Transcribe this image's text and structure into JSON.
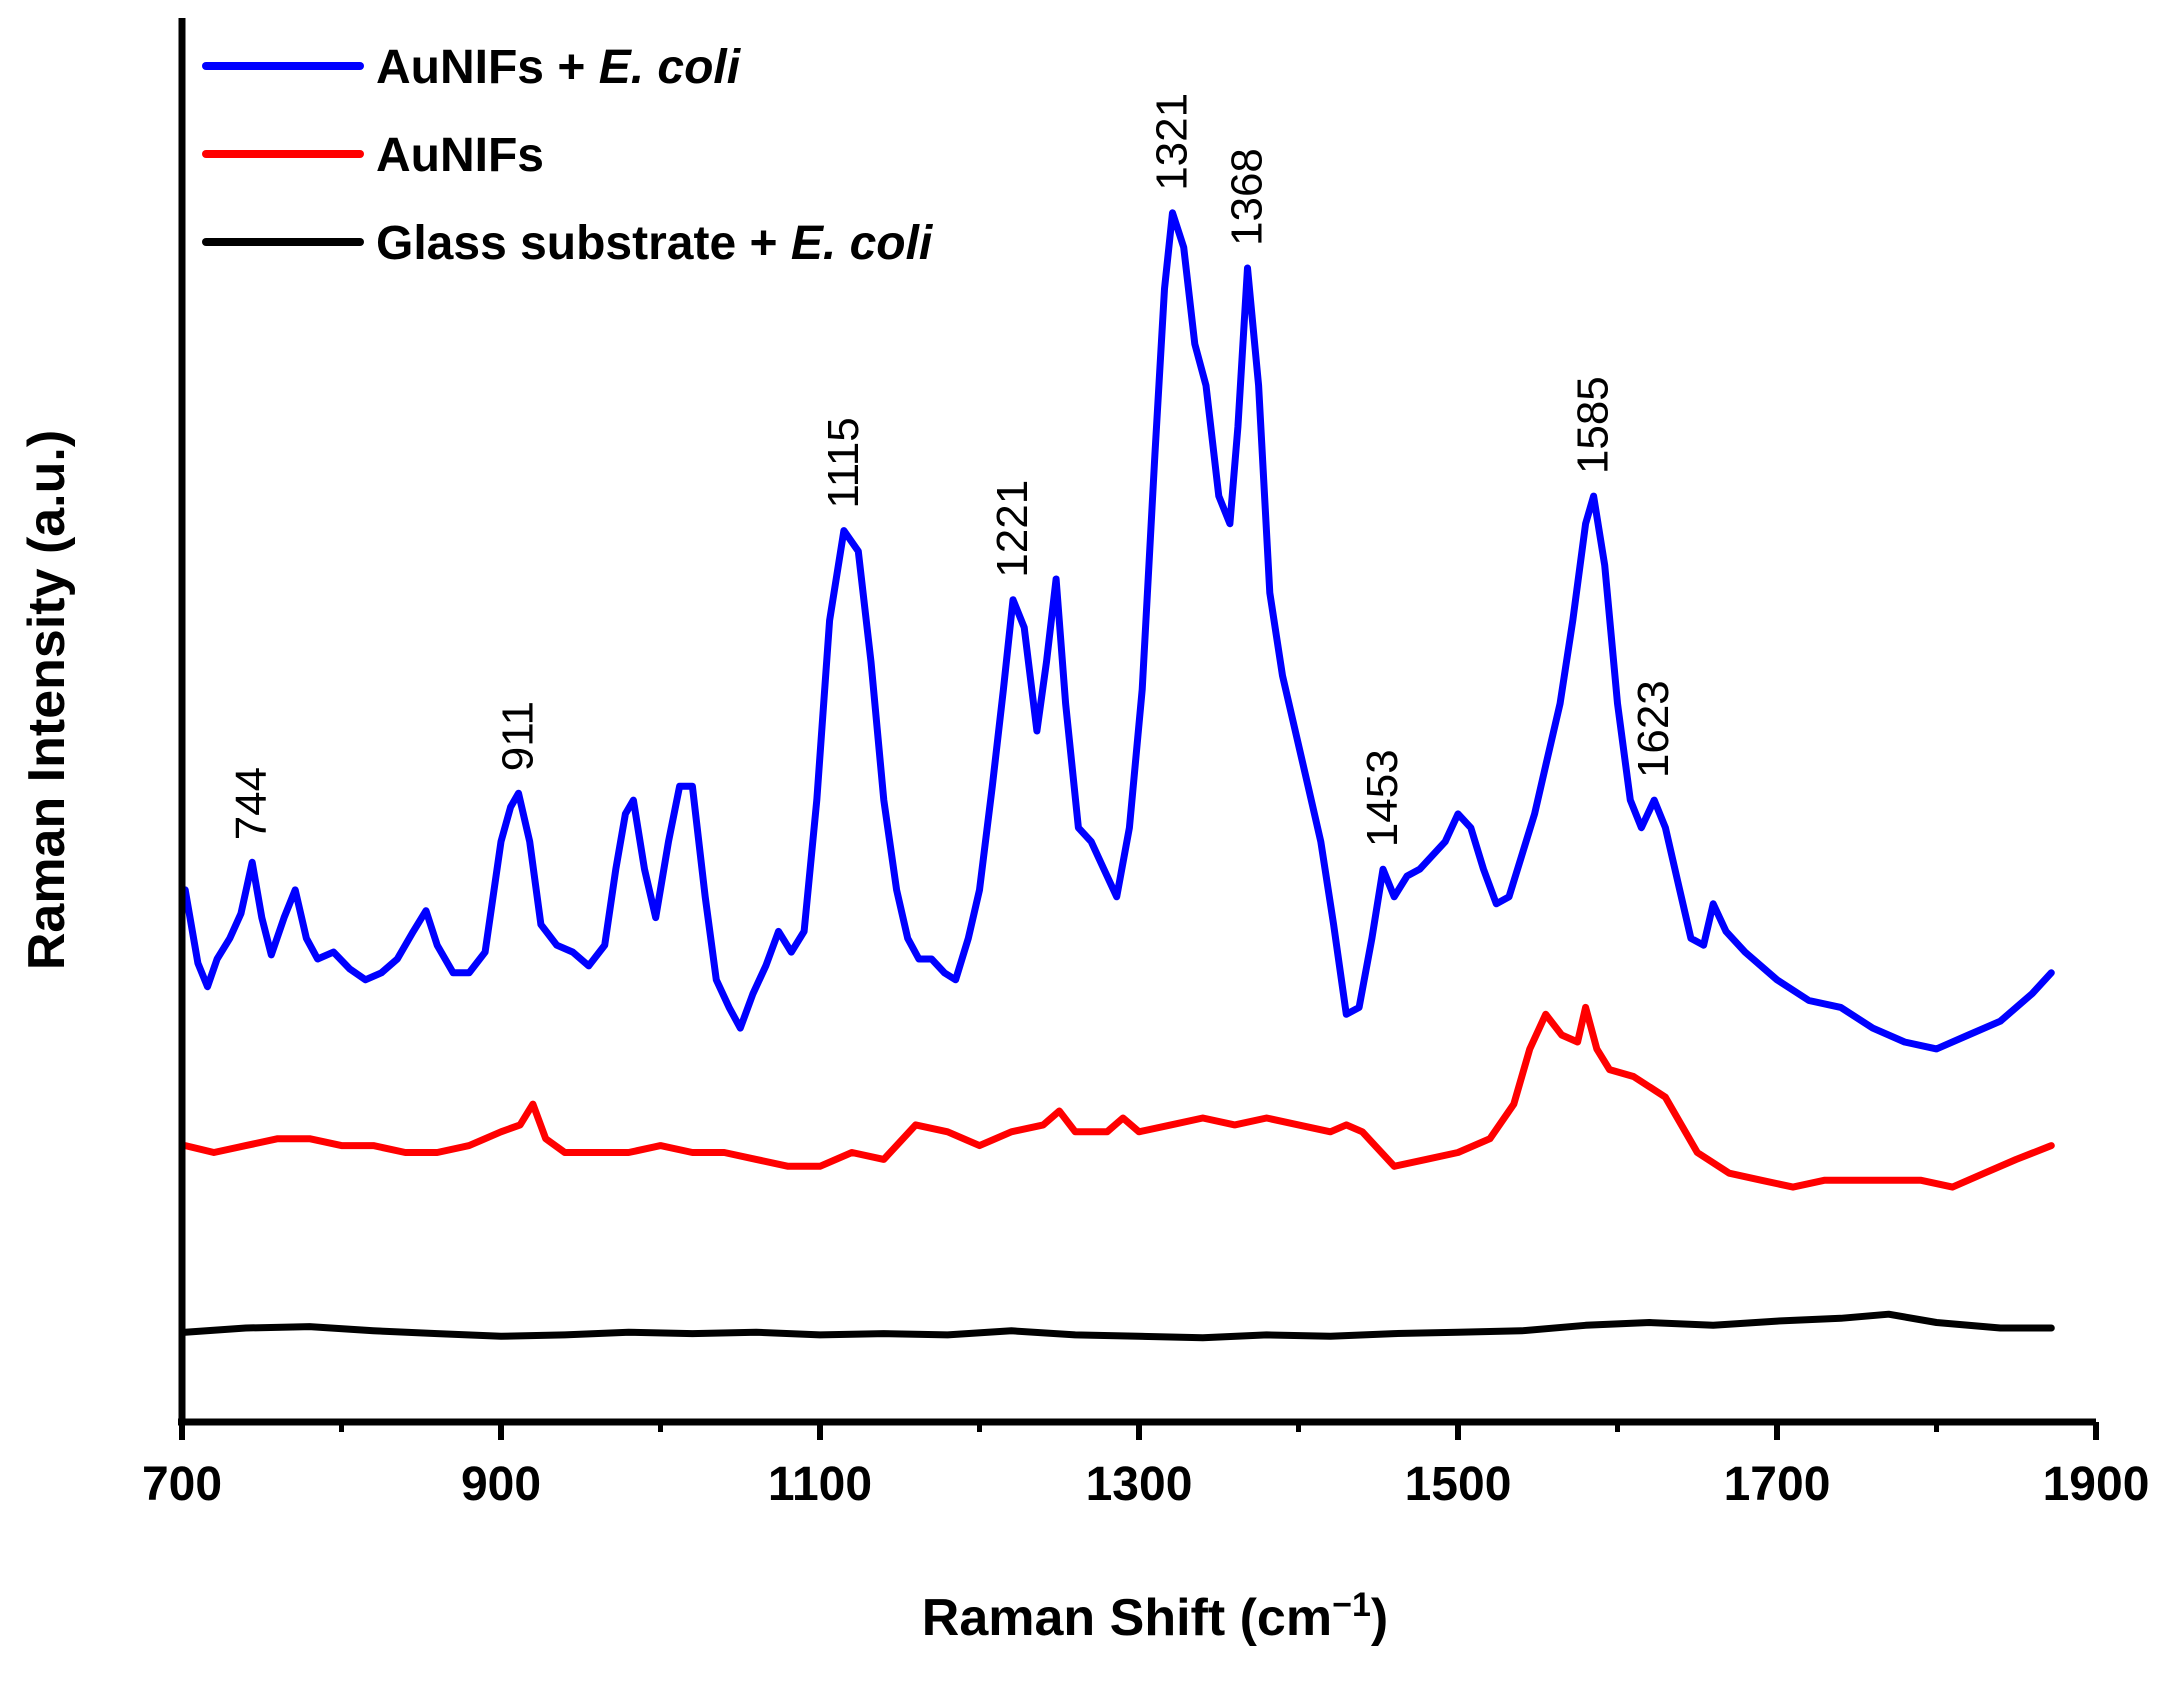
{
  "chart_data": {
    "type": "line",
    "xlabel": "Raman Shift (cm",
    "xlabel_superscript": "−1",
    "xlabel_suffix": ")",
    "ylabel": "Raman Intensity (a.u.)",
    "xlim": [
      700,
      1900
    ],
    "ylim": [
      0,
      100
    ],
    "x_ticks": [
      700,
      900,
      1100,
      1300,
      1500,
      1700,
      1900
    ],
    "x_tick_labels": [
      "700",
      "900",
      "1100",
      "1300",
      "1500",
      "1700",
      "1900"
    ],
    "y_ticks_shown": false,
    "legend_position": "top-left",
    "legend": [
      {
        "label": "AuNIFs + ",
        "label_italic": "E. coli",
        "color": "#0000ff"
      },
      {
        "label": "AuNIFs",
        "label_italic": "",
        "color": "#ff0000"
      },
      {
        "label": "Glass substrate + ",
        "label_italic": "E. coli",
        "color": "#000000"
      }
    ],
    "series": [
      {
        "label_ref": 0,
        "color": "#0000ff",
        "x": [
          702,
          710,
          716,
          722,
          730,
          737,
          744,
          750,
          756,
          764,
          771,
          778,
          785,
          795,
          805,
          815,
          825,
          835,
          845,
          853,
          860,
          870,
          880,
          890,
          900,
          906,
          911,
          918,
          925,
          935,
          945,
          955,
          965,
          972,
          978,
          983,
          990,
          997,
          1005,
          1012,
          1020,
          1028,
          1035,
          1043,
          1050,
          1058,
          1066,
          1074,
          1082,
          1090,
          1098,
          1106,
          1115,
          1124,
          1132,
          1140,
          1148,
          1155,
          1162,
          1170,
          1178,
          1185,
          1193,
          1200,
          1208,
          1215,
          1221,
          1228,
          1236,
          1242,
          1248,
          1254,
          1262,
          1270,
          1278,
          1286,
          1294,
          1302,
          1310,
          1316,
          1321,
          1328,
          1335,
          1342,
          1350,
          1357,
          1362,
          1368,
          1375,
          1382,
          1390,
          1398,
          1406,
          1414,
          1422,
          1430,
          1438,
          1446,
          1453,
          1460,
          1468,
          1476,
          1484,
          1492,
          1500,
          1508,
          1516,
          1524,
          1532,
          1540,
          1548,
          1556,
          1564,
          1572,
          1580,
          1585,
          1592,
          1600,
          1608,
          1615,
          1623,
          1630,
          1638,
          1646,
          1654,
          1660,
          1668,
          1680,
          1700,
          1720,
          1740,
          1760,
          1780,
          1800,
          1820,
          1840,
          1860,
          1872
        ],
        "y": [
          38.5,
          33.2,
          31.5,
          33.5,
          35.0,
          36.8,
          40.5,
          36.5,
          33.8,
          36.5,
          38.5,
          35.0,
          33.5,
          34.0,
          32.8,
          32.0,
          32.5,
          33.5,
          35.5,
          37.0,
          34.5,
          32.5,
          32.5,
          34.0,
          42.0,
          44.5,
          45.5,
          42.0,
          36.0,
          34.5,
          34.0,
          33.0,
          34.5,
          40.0,
          44.0,
          45.0,
          40.0,
          36.5,
          42.0,
          46.0,
          46.0,
          38.0,
          32.0,
          30.0,
          28.5,
          31.0,
          33.0,
          35.5,
          34.0,
          35.5,
          45.0,
          58.0,
          64.5,
          63.0,
          55.0,
          45.0,
          38.5,
          35.0,
          33.5,
          33.5,
          32.5,
          32.0,
          35.0,
          38.5,
          46.0,
          53.0,
          59.5,
          57.5,
          50.0,
          55.0,
          61.0,
          52.0,
          43.0,
          42.0,
          40.0,
          38.0,
          43.0,
          53.0,
          70.0,
          82.0,
          87.5,
          85.0,
          78.0,
          75.0,
          67.0,
          65.0,
          72.0,
          83.5,
          75.0,
          60.0,
          54.0,
          50.0,
          46.0,
          42.0,
          36.0,
          29.5,
          30.0,
          35.0,
          40.0,
          38.0,
          39.5,
          40.0,
          41.0,
          42.0,
          44.0,
          43.0,
          40.0,
          37.5,
          38.0,
          41.0,
          44.0,
          48.0,
          52.0,
          58.0,
          65.0,
          67.0,
          62.0,
          52.0,
          45.0,
          43.0,
          45.0,
          43.0,
          39.0,
          35.0,
          34.5,
          37.5,
          35.5,
          34.0,
          32.0,
          30.5,
          30.0,
          28.5,
          27.5,
          27.0,
          28.0,
          29.0,
          31.0,
          32.5
        ],
        "peaks": [
          744,
          911,
          1115,
          1221,
          1321,
          1368,
          1453,
          1585,
          1623
        ]
      },
      {
        "label_ref": 1,
        "color": "#ff0000",
        "x": [
          702,
          720,
          740,
          760,
          780,
          800,
          820,
          840,
          860,
          880,
          900,
          912,
          920,
          928,
          940,
          960,
          980,
          1000,
          1020,
          1040,
          1060,
          1080,
          1100,
          1120,
          1140,
          1160,
          1180,
          1200,
          1220,
          1240,
          1250,
          1260,
          1280,
          1290,
          1300,
          1320,
          1340,
          1360,
          1380,
          1400,
          1420,
          1430,
          1440,
          1460,
          1480,
          1500,
          1520,
          1535,
          1545,
          1555,
          1565,
          1575,
          1580,
          1587,
          1595,
          1610,
          1630,
          1650,
          1670,
          1690,
          1710,
          1730,
          1750,
          1770,
          1790,
          1810,
          1830,
          1850,
          1872
        ],
        "y": [
          20.0,
          19.5,
          20.0,
          20.5,
          20.5,
          20.0,
          20.0,
          19.5,
          19.5,
          20.0,
          21.0,
          21.5,
          23.0,
          20.5,
          19.5,
          19.5,
          19.5,
          20.0,
          19.5,
          19.5,
          19.0,
          18.5,
          18.5,
          19.5,
          19.0,
          21.5,
          21.0,
          20.0,
          21.0,
          21.5,
          22.5,
          21.0,
          21.0,
          22.0,
          21.0,
          21.5,
          22.0,
          21.5,
          22.0,
          21.5,
          21.0,
          21.5,
          21.0,
          18.5,
          19.0,
          19.5,
          20.5,
          23.0,
          27.0,
          29.5,
          28.0,
          27.5,
          30.0,
          27.0,
          25.5,
          25.0,
          23.5,
          19.5,
          18.0,
          17.5,
          17.0,
          17.5,
          17.5,
          17.5,
          17.5,
          17.0,
          18.0,
          19.0,
          20.0
        ],
        "peaks": []
      },
      {
        "label_ref": 2,
        "color": "#000000",
        "x": [
          702,
          740,
          780,
          820,
          860,
          900,
          940,
          980,
          1020,
          1060,
          1100,
          1140,
          1180,
          1220,
          1260,
          1300,
          1340,
          1380,
          1420,
          1460,
          1500,
          1540,
          1580,
          1620,
          1660,
          1700,
          1740,
          1770,
          1800,
          1840,
          1872
        ],
        "y": [
          6.5,
          6.8,
          6.9,
          6.6,
          6.4,
          6.2,
          6.3,
          6.5,
          6.4,
          6.5,
          6.3,
          6.4,
          6.3,
          6.6,
          6.3,
          6.2,
          6.1,
          6.3,
          6.2,
          6.4,
          6.5,
          6.6,
          7.0,
          7.2,
          7.0,
          7.3,
          7.5,
          7.8,
          7.2,
          6.8,
          6.8
        ],
        "peaks": []
      }
    ]
  }
}
